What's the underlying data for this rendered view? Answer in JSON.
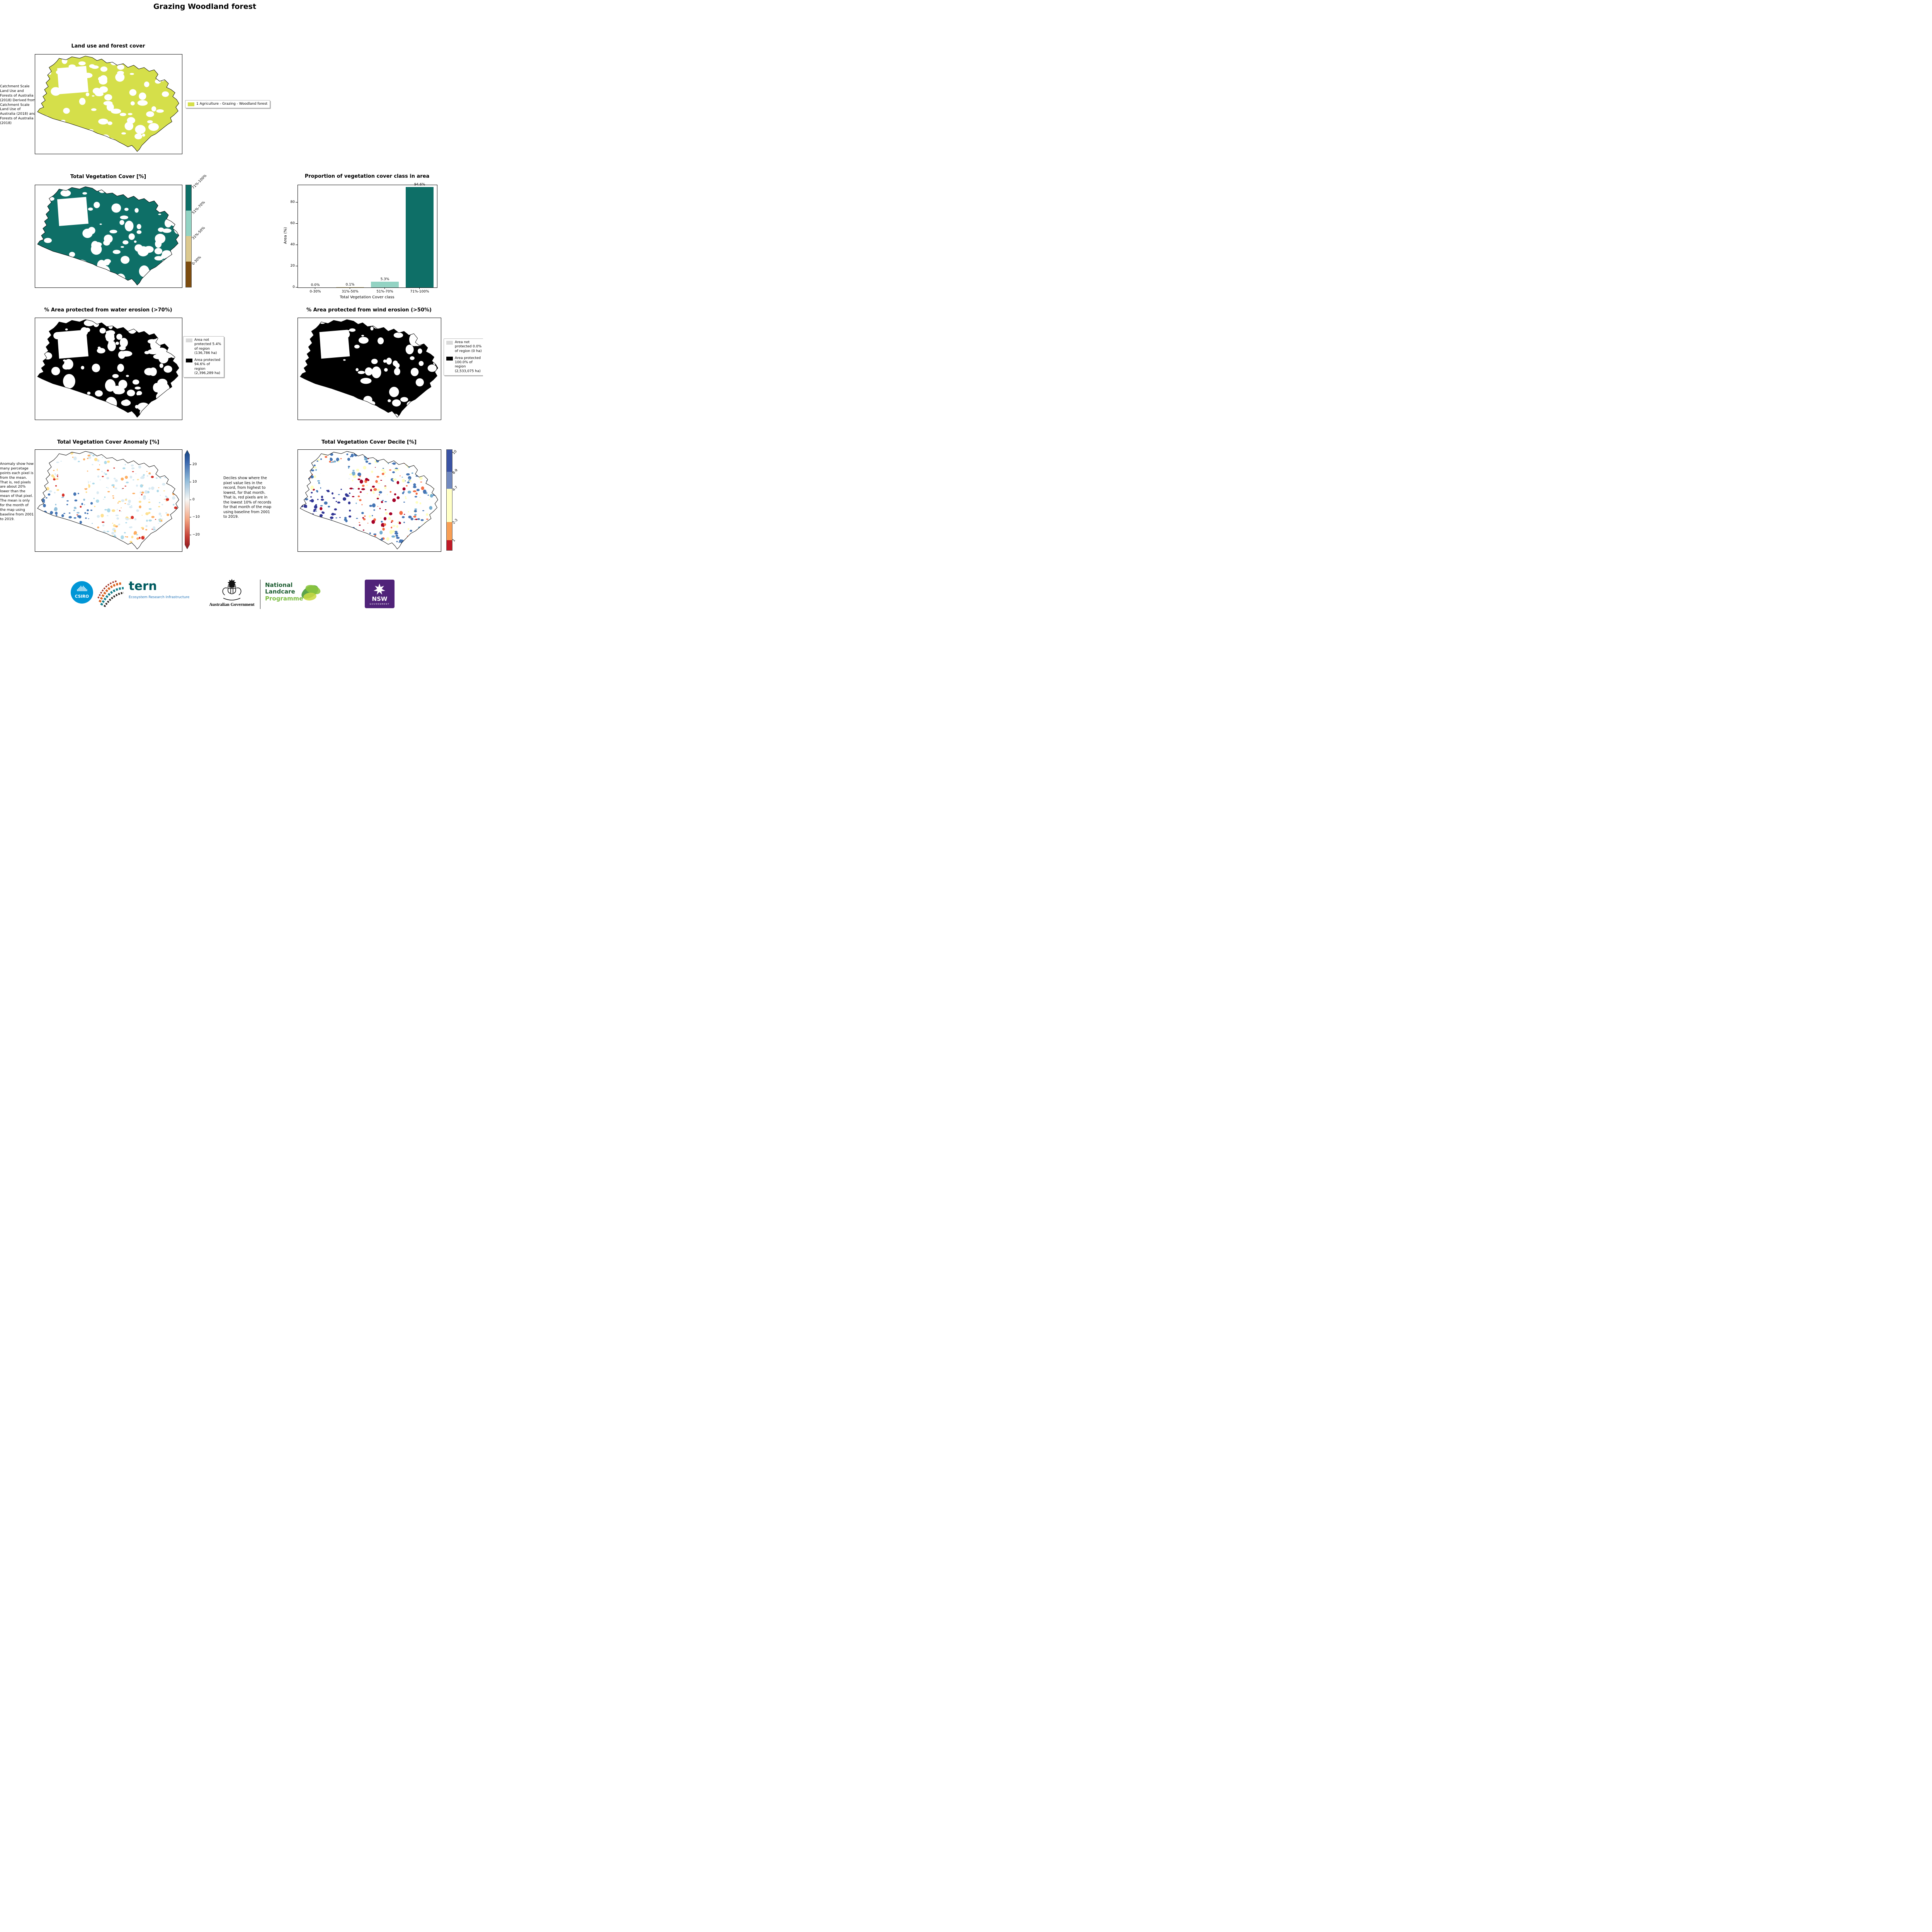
{
  "page": {
    "title": "Grazing Woodland forest"
  },
  "landuse": {
    "title": "Land use and forest cover",
    "note": " Catchment Scale Land Use and Forests of Australia (2018) Derived from Catchment Scale Land Use of Australia (2018) and Forests of Australia (2018)",
    "legend_label": "1 Agriculture - Grazing - Woodland forest",
    "fill_color": "#d5df4a"
  },
  "veg_cover": {
    "title": "Total Vegetation Cover [%]",
    "classes": [
      {
        "label": "71%-100%",
        "color": "#0e6f67"
      },
      {
        "label": "51%-70%",
        "color": "#93d3c3"
      },
      {
        "label": "31%-50%",
        "color": "#dcc98f"
      },
      {
        "label": "0-30%",
        "color": "#7c4c0f"
      }
    ]
  },
  "chart_data": {
    "type": "bar",
    "title": "Proportion of vegetation cover class in area",
    "xlabel": "Total Vegetation Cover class",
    "ylabel": "Area (%)",
    "categories": [
      "0-30%",
      "31%-50%",
      "51%-70%",
      "71%-100%"
    ],
    "values": [
      0.0,
      0.1,
      5.3,
      94.6
    ],
    "value_labels": [
      "0.0%",
      "0.1%",
      "5.3%",
      "94.6%"
    ],
    "bar_colors": [
      "#7c4c0f",
      "#dcc98f",
      "#93d3c3",
      "#0e6f67"
    ],
    "yticks": [
      0,
      20,
      40,
      60,
      80
    ],
    "ylim": [
      0,
      96
    ],
    "grid": false,
    "legend_position": "none"
  },
  "water_erosion": {
    "title": "% Area protected from water erosion (>70%)",
    "legend": [
      {
        "label": "Area not protected 5.4% of region (136,786 ha)",
        "color": "#d9d9d9"
      },
      {
        "label": "Area protected 94.6% of region (2,396,289 ha)",
        "color": "#000000"
      }
    ]
  },
  "wind_erosion": {
    "title": "% Area protected from wind erosion (>50%)",
    "legend": [
      {
        "label": "Area not protected 0.0% of region (0 ha)",
        "color": "#d9d9d9"
      },
      {
        "label": "Area protected 100.0% of region (2,533,075 ha)",
        "color": "#000000"
      }
    ]
  },
  "anomaly": {
    "title": "Total Vegetation Cover Anomaly [%]",
    "note": "Anomaly show how many percetage points each pixel is from the mean. That is, red pixels are about 20% lower than the mean of that pixel. The mean is only for the month of the map using baseline from 2001 to 2019.",
    "colorbar_ticks": [
      "20",
      "10",
      "0",
      "−10",
      "−20"
    ]
  },
  "decile": {
    "title": "Total Vegetation Cover Decile [%]",
    "note": "Deciles show where the pixel value lies in the record, from highest to lowest, for that month. That is, red pixels are in the lowest 10% of records for that month of the map using baseline from 2001 to 2019.",
    "classes": [
      {
        "label": "10",
        "color": "#3a53a4"
      },
      {
        "label": "8-9",
        "color": "#7189bf"
      },
      {
        "label": "4-7",
        "color": "#ffffc5"
      },
      {
        "label": "2-3",
        "color": "#f89e54"
      },
      {
        "label": "1",
        "color": "#c01a27"
      }
    ]
  },
  "footer": {
    "csiro": "CSIRO",
    "tern": "tern",
    "tern_tagline": "Ecosystem Research Infrastructure",
    "aus_gov": "Australian Government",
    "landcare_line1": "National",
    "landcare_line2": "Landcare",
    "landcare_line3": "Programme",
    "nsw": "NSW",
    "nsw_sub": "GOVERNMENT"
  }
}
